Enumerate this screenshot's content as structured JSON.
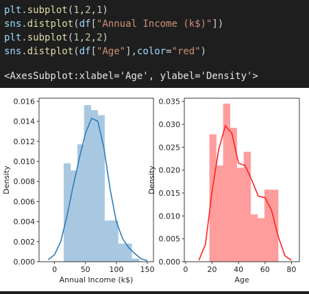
{
  "code": {
    "lines": [
      [
        {
          "t": "plt",
          "c": "name"
        },
        {
          "t": ".",
          "c": "punc"
        },
        {
          "t": "subplot",
          "c": "fn"
        },
        {
          "t": "(",
          "c": "punc"
        },
        {
          "t": "1",
          "c": "num"
        },
        {
          "t": ",",
          "c": "punc"
        },
        {
          "t": "2",
          "c": "num"
        },
        {
          "t": ",",
          "c": "punc"
        },
        {
          "t": "1",
          "c": "num"
        },
        {
          "t": ")",
          "c": "punc"
        }
      ],
      [
        {
          "t": "sns",
          "c": "name"
        },
        {
          "t": ".",
          "c": "punc"
        },
        {
          "t": "distplot",
          "c": "fn"
        },
        {
          "t": "(",
          "c": "punc"
        },
        {
          "t": "df",
          "c": "name"
        },
        {
          "t": "[",
          "c": "punc"
        },
        {
          "t": "\"Annual Income (k$)\"",
          "c": "str"
        },
        {
          "t": "])",
          "c": "punc"
        }
      ],
      [
        {
          "t": "plt",
          "c": "name"
        },
        {
          "t": ".",
          "c": "punc"
        },
        {
          "t": "subplot",
          "c": "fn"
        },
        {
          "t": "(",
          "c": "punc"
        },
        {
          "t": "1",
          "c": "num"
        },
        {
          "t": ",",
          "c": "punc"
        },
        {
          "t": "2",
          "c": "num"
        },
        {
          "t": ",",
          "c": "punc"
        },
        {
          "t": "2",
          "c": "num"
        },
        {
          "t": ")",
          "c": "punc"
        }
      ],
      [
        {
          "t": "sns",
          "c": "name"
        },
        {
          "t": ".",
          "c": "punc"
        },
        {
          "t": "distplot",
          "c": "fn"
        },
        {
          "t": "(",
          "c": "punc"
        },
        {
          "t": "df",
          "c": "name"
        },
        {
          "t": "[",
          "c": "punc"
        },
        {
          "t": "\"Age\"",
          "c": "str"
        },
        {
          "t": "],",
          "c": "punc"
        },
        {
          "t": "color",
          "c": "name"
        },
        {
          "t": "=",
          "c": "punc"
        },
        {
          "t": "\"red\"",
          "c": "str"
        },
        {
          "t": ")",
          "c": "punc"
        }
      ]
    ]
  },
  "output": {
    "text": "<AxesSubplot:xlabel='Age', ylabel='Density'>"
  },
  "colors": {
    "left_bar": "#a8c8e1",
    "left_line": "#2b7bba",
    "right_bar": "#ff9d9d",
    "right_line": "#ff2020"
  },
  "chart_data": [
    {
      "type": "bar",
      "xlabel": "Annual Income (k$)",
      "ylabel": "Density",
      "xlim": [
        -25,
        160
      ],
      "ylim": [
        0,
        0.0163
      ],
      "xticks": [
        0,
        50,
        100,
        150
      ],
      "yticks": [
        0.0,
        0.002,
        0.004,
        0.006,
        0.008,
        0.01,
        0.012,
        0.014,
        0.016
      ],
      "ytick_labels": [
        "0.000",
        "0.002",
        "0.004",
        "0.006",
        "0.008",
        "0.010",
        "0.012",
        "0.014",
        "0.016"
      ],
      "bins": [
        [
          15,
          26,
          0.0098
        ],
        [
          26,
          37,
          0.0091
        ],
        [
          37,
          48,
          0.0117
        ],
        [
          48,
          59,
          0.0156
        ],
        [
          59,
          70,
          0.0151
        ],
        [
          70,
          81,
          0.0146
        ],
        [
          81,
          92,
          0.0041
        ],
        [
          92,
          103,
          0.0041
        ],
        [
          103,
          114,
          0.0018
        ],
        [
          114,
          125,
          0.0018
        ],
        [
          125,
          137,
          0.0003
        ]
      ],
      "kde": [
        [
          -10,
          0.0002
        ],
        [
          0,
          0.0007
        ],
        [
          10,
          0.002
        ],
        [
          20,
          0.0045
        ],
        [
          30,
          0.0075
        ],
        [
          40,
          0.0103
        ],
        [
          50,
          0.0128
        ],
        [
          60,
          0.0143
        ],
        [
          70,
          0.014
        ],
        [
          80,
          0.0113
        ],
        [
          90,
          0.0072
        ],
        [
          100,
          0.004
        ],
        [
          110,
          0.0023
        ],
        [
          120,
          0.0014
        ],
        [
          130,
          0.0008
        ],
        [
          140,
          0.0003
        ],
        [
          150,
          0.0001
        ]
      ]
    },
    {
      "type": "bar",
      "xlabel": "Age",
      "ylabel": "Density",
      "xlim": [
        -1,
        86
      ],
      "ylim": [
        0,
        0.0357
      ],
      "xticks": [
        0,
        20,
        40,
        60,
        80
      ],
      "yticks": [
        0.0,
        0.005,
        0.01,
        0.015,
        0.02,
        0.025,
        0.03,
        0.035
      ],
      "ytick_labels": [
        "0.000",
        "0.005",
        "0.010",
        "0.015",
        "0.020",
        "0.025",
        "0.030",
        "0.035"
      ],
      "bins": [
        [
          18,
          23.2,
          0.0278
        ],
        [
          23.2,
          28.4,
          0.021
        ],
        [
          28.4,
          33.6,
          0.0345
        ],
        [
          33.6,
          38.8,
          0.0292
        ],
        [
          38.8,
          44,
          0.0205
        ],
        [
          44,
          49.2,
          0.024
        ],
        [
          49.2,
          54.4,
          0.0103
        ],
        [
          54.4,
          59.6,
          0.0095
        ],
        [
          59.6,
          64.8,
          0.0157
        ],
        [
          64.8,
          70,
          0.0157
        ]
      ],
      "kde": [
        [
          10,
          0.0003
        ],
        [
          15,
          0.0038
        ],
        [
          20,
          0.0155
        ],
        [
          25,
          0.0245
        ],
        [
          30,
          0.0297
        ],
        [
          35,
          0.028
        ],
        [
          40,
          0.0215
        ],
        [
          45,
          0.021
        ],
        [
          50,
          0.0178
        ],
        [
          55,
          0.0143
        ],
        [
          60,
          0.014
        ],
        [
          65,
          0.0112
        ],
        [
          70,
          0.0055
        ],
        [
          75,
          0.0013
        ],
        [
          80,
          0.0003
        ]
      ]
    }
  ]
}
